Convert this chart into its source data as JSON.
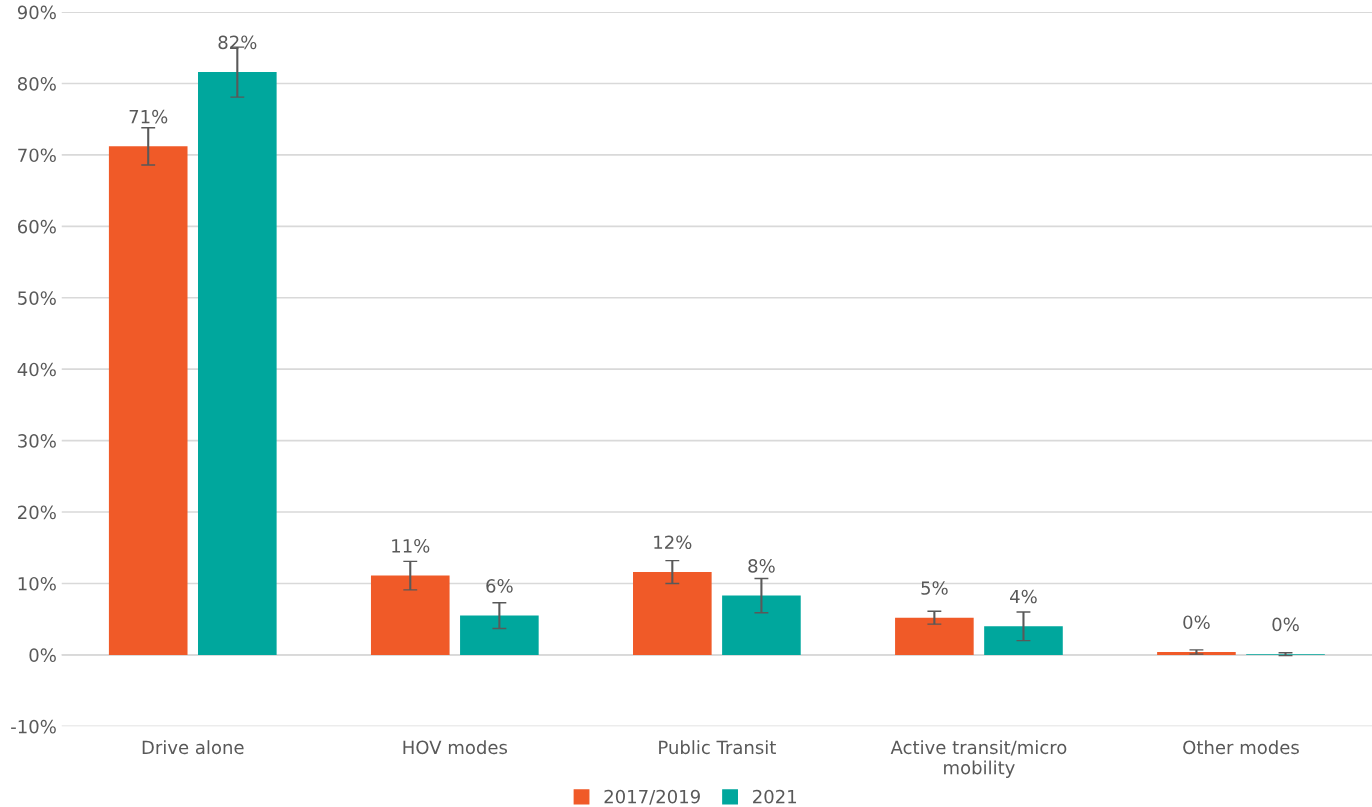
{
  "chart_data": {
    "type": "bar",
    "categories": [
      "Drive alone",
      "HOV modes",
      "Public Transit",
      "Active transit/micro mobility",
      "Other modes"
    ],
    "series": [
      {
        "name": "2017/2019",
        "color": "#f05a28",
        "values": [
          71.2,
          11.1,
          11.6,
          5.2,
          0.4
        ],
        "errors": [
          2.6,
          2.0,
          1.6,
          0.9,
          0.3
        ],
        "value_labels": [
          "71%",
          "11%",
          "12%",
          "5%",
          "0%"
        ]
      },
      {
        "name": "2021",
        "color": "#00a79d",
        "values": [
          81.6,
          5.5,
          8.3,
          4.0,
          0.1
        ],
        "errors": [
          3.5,
          1.8,
          2.4,
          2.0,
          0.2
        ],
        "value_labels": [
          "82%",
          "6%",
          "8%",
          "4%",
          "0%"
        ]
      }
    ],
    "ylim": [
      -10,
      90
    ],
    "yticks": [
      {
        "value": -10,
        "label": "-10%"
      },
      {
        "value": 0,
        "label": "0%"
      },
      {
        "value": 10,
        "label": "10%"
      },
      {
        "value": 20,
        "label": "20%"
      },
      {
        "value": 30,
        "label": "30%"
      },
      {
        "value": 40,
        "label": "40%"
      },
      {
        "value": 50,
        "label": "50%"
      },
      {
        "value": 60,
        "label": "60%"
      },
      {
        "value": 70,
        "label": "70%"
      },
      {
        "value": 80,
        "label": "80%"
      },
      {
        "value": 90,
        "label": "90%"
      }
    ],
    "grid": "y",
    "legend": "bottom"
  }
}
